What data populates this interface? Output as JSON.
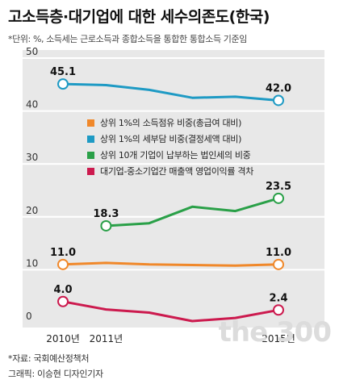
{
  "title": "고소득층·대기업에 대한 세수의존도(한국)",
  "note": "*단위: %, 소득세는 근로소득과 종합소득을 통합한 통합소득 기준임",
  "source": "*자료: 국회예산정책처",
  "credit": "그래픽: 이승현 디자인기자",
  "watermark": "the 300",
  "colors": {
    "orange": "#f0882a",
    "teal": "#1e9ac4",
    "green": "#2aa048",
    "crimson": "#cc1a4e",
    "panel": "#e8e8e8"
  },
  "chart_data": {
    "type": "line",
    "title": "고소득층·대기업에 대한 세수의존도(한국)",
    "ylim": [
      0,
      50
    ],
    "yticks": [
      0,
      10,
      20,
      30,
      40,
      50
    ],
    "ytick_labels": [
      "0",
      "10",
      "20",
      "30",
      "40",
      "50"
    ],
    "x": [
      2010,
      2011,
      2012,
      2013,
      2014,
      2015
    ],
    "xtick_labels": [
      {
        "x": 2010,
        "label": "2010년"
      },
      {
        "x": 2011,
        "label": "2011년"
      },
      {
        "x": 2015,
        "label": "2015년"
      }
    ],
    "legend_position": "center",
    "series": [
      {
        "name": "상위 1%의 세부담 비중(결정세액 대비)",
        "color": "#1e9ac4",
        "x": [
          2010,
          2011,
          2012,
          2013,
          2014,
          2015
        ],
        "values": [
          45.1,
          44.9,
          44.0,
          42.5,
          42.7,
          42.0
        ],
        "labels": [
          {
            "x": 2010,
            "text": "45.1"
          },
          {
            "x": 2015,
            "text": "42.0"
          }
        ]
      },
      {
        "name": "상위 10개 기업이 납부하는 법인세의 비중",
        "color": "#2aa048",
        "x": [
          2011,
          2012,
          2013,
          2014,
          2015
        ],
        "values": [
          18.3,
          18.8,
          21.9,
          21.1,
          23.5
        ],
        "labels": [
          {
            "x": 2011,
            "text": "18.3"
          },
          {
            "x": 2015,
            "text": "23.5"
          }
        ]
      },
      {
        "name": "상위 1%의 소득점유 비중(총급여 대비)",
        "color": "#f0882a",
        "x": [
          2010,
          2011,
          2012,
          2013,
          2014,
          2015
        ],
        "values": [
          11.0,
          11.3,
          11.0,
          10.9,
          10.8,
          11.0
        ],
        "labels": [
          {
            "x": 2010,
            "text": "11.0"
          },
          {
            "x": 2015,
            "text": "11.0"
          }
        ]
      },
      {
        "name": "대기업-중소기업간 매출액 영업이익률 격차",
        "color": "#cc1a4e",
        "x": [
          2010,
          2011,
          2012,
          2013,
          2014,
          2015
        ],
        "values": [
          4.0,
          2.5,
          1.9,
          0.3,
          0.9,
          2.4
        ],
        "labels": [
          {
            "x": 2010,
            "text": "4.0"
          },
          {
            "x": 2015,
            "text": "2.4"
          }
        ]
      }
    ],
    "legend": [
      {
        "text": "상위 1%의 소득점유 비중(총급여 대비)",
        "color": "#f0882a"
      },
      {
        "text": "상위 1%의 세부담 비중(결정세액 대비)",
        "color": "#1e9ac4"
      },
      {
        "text": "상위 10개 기업이 납부하는 법인세의 비중",
        "color": "#2aa048"
      },
      {
        "text": "대기업-중소기업간 매출액 영업이익률 격차",
        "color": "#cc1a4e"
      }
    ]
  }
}
